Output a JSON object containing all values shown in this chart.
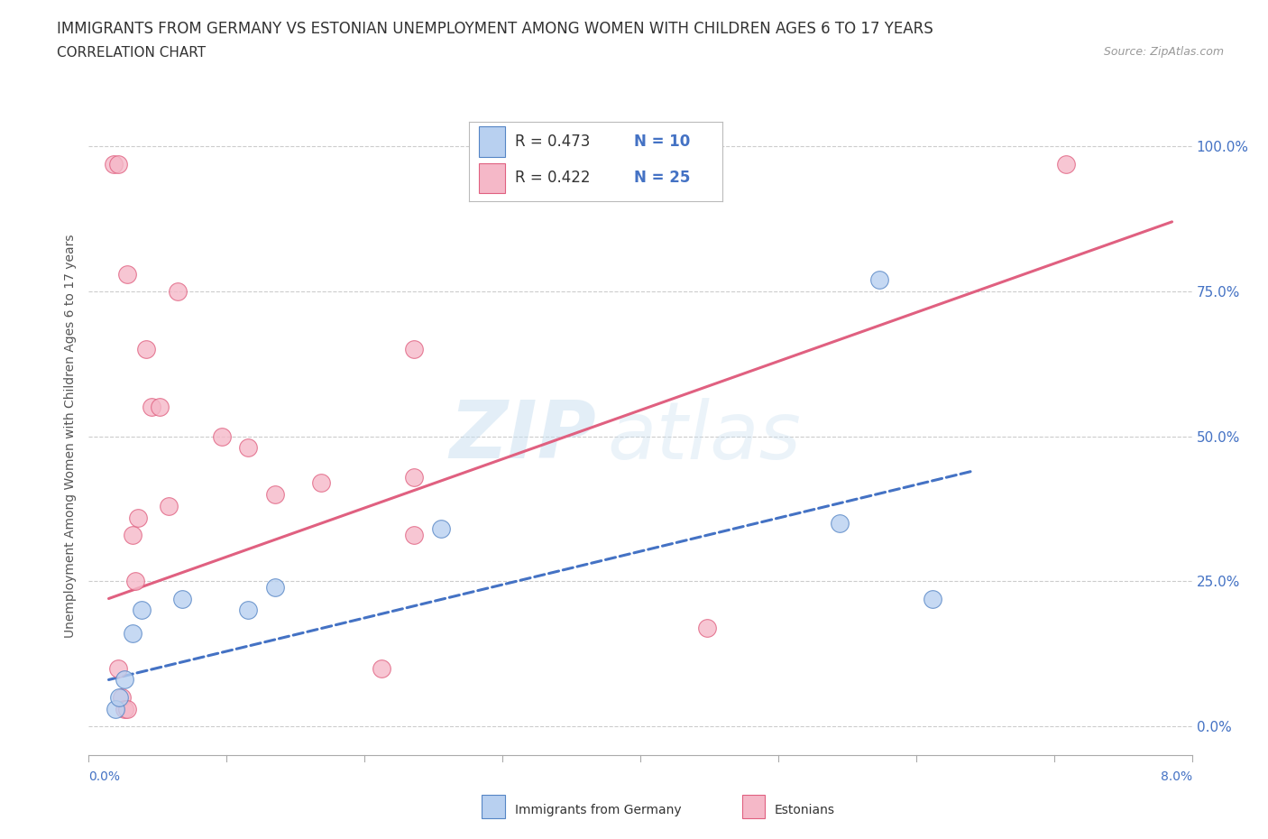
{
  "title": "IMMIGRANTS FROM GERMANY VS ESTONIAN UNEMPLOYMENT AMONG WOMEN WITH CHILDREN AGES 6 TO 17 YEARS",
  "subtitle": "CORRELATION CHART",
  "source": "Source: ZipAtlas.com",
  "ylabel": "Unemployment Among Women with Children Ages 6 to 17 years",
  "watermark_zip": "ZIP",
  "watermark_atlas": "atlas",
  "xlim": [
    0.0,
    8.0
  ],
  "ylim": [
    0.0,
    100.0
  ],
  "yticks": [
    0.0,
    25.0,
    50.0,
    75.0,
    100.0
  ],
  "ytick_labels": [
    "0.0%",
    "25.0%",
    "50.0%",
    "75.0%",
    "100.0%"
  ],
  "blue_scatter_x": [
    0.05,
    0.08,
    0.12,
    0.18,
    0.25,
    0.55,
    1.05,
    1.25,
    2.5,
    5.5,
    5.8,
    6.2
  ],
  "blue_scatter_y": [
    3.0,
    5.0,
    8.0,
    16.0,
    20.0,
    22.0,
    20.0,
    24.0,
    34.0,
    35.0,
    77.0,
    22.0
  ],
  "pink_scatter_x": [
    0.04,
    0.07,
    0.07,
    0.1,
    0.12,
    0.14,
    0.14,
    0.18,
    0.22,
    0.28,
    0.32,
    0.38,
    0.45,
    0.52,
    0.85,
    1.05,
    1.25,
    1.6,
    2.05,
    2.3,
    2.3,
    2.3,
    4.5,
    7.2,
    0.2
  ],
  "pink_scatter_y": [
    97.0,
    97.0,
    10.0,
    5.0,
    3.0,
    3.0,
    78.0,
    33.0,
    36.0,
    65.0,
    55.0,
    55.0,
    38.0,
    75.0,
    50.0,
    48.0,
    40.0,
    42.0,
    10.0,
    65.0,
    43.0,
    33.0,
    17.0,
    97.0,
    25.0
  ],
  "blue_line_x": [
    0.0,
    6.5
  ],
  "blue_line_y": [
    8.0,
    44.0
  ],
  "pink_line_x": [
    0.0,
    8.0
  ],
  "pink_line_y": [
    22.0,
    87.0
  ],
  "blue_color": "#b8d0f0",
  "blue_edge_color": "#5585c5",
  "pink_color": "#f5b8c8",
  "pink_edge_color": "#e06080",
  "blue_line_color": "#4472c4",
  "pink_line_color": "#e06080",
  "background_color": "#ffffff",
  "grid_color": "#cccccc",
  "title_color": "#333333",
  "axis_label_color": "#4472c4",
  "legend_R_color": "#333333",
  "legend_N_color": "#4472c4"
}
